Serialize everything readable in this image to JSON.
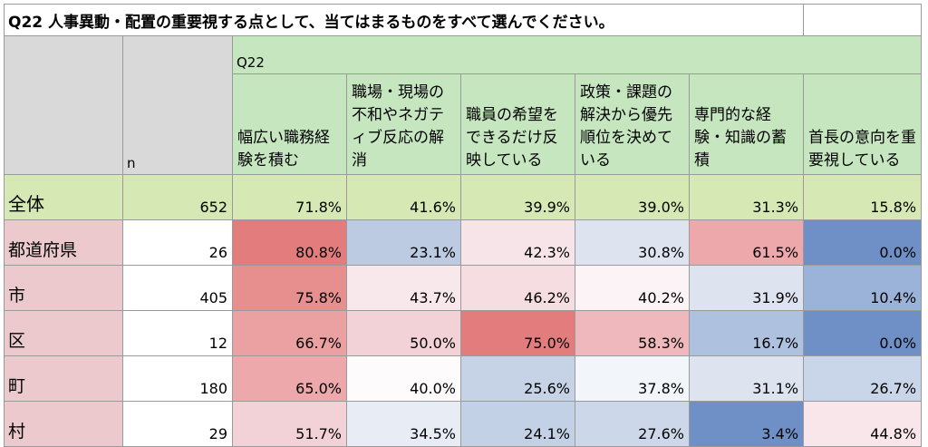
{
  "title": "Q22 人事異動・配置の重要視する点として、当てはまるものをすべて選んでください。",
  "header": {
    "n_label": "n",
    "question_code": "Q22",
    "options": [
      "幅広い職務経験を積む",
      "職場・現場の不和やネガティブ反応の解消",
      "職員の希望をできるだけ反映している",
      "政策・課題の解決から優先順位を決めている",
      "専門的な経験・知識の蓄積",
      "首長の意向を重要視している"
    ]
  },
  "total": {
    "label": "全体",
    "n": "652",
    "values": [
      "71.8%",
      "41.6%",
      "39.9%",
      "39.0%",
      "31.3%",
      "15.8%"
    ]
  },
  "rows": [
    {
      "label": "都道府県",
      "n": "26",
      "values": [
        "80.8%",
        "23.1%",
        "42.3%",
        "30.8%",
        "61.5%",
        "0.0%"
      ],
      "colors": [
        "#e37d7d",
        "#bccbe2",
        "#f7e4e8",
        "#dde4f0",
        "#eda8ab",
        "#6e90c6"
      ]
    },
    {
      "label": "市",
      "n": "405",
      "values": [
        "75.8%",
        "43.7%",
        "46.2%",
        "40.2%",
        "31.9%",
        "10.4%"
      ],
      "colors": [
        "#e78e8f",
        "#f8e8ec",
        "#f6dde2",
        "#fbf3f5",
        "#dde4f0",
        "#9bb3d8"
      ]
    },
    {
      "label": "区",
      "n": "12",
      "values": [
        "66.7%",
        "50.0%",
        "75.0%",
        "58.3%",
        "16.7%",
        "0.0%"
      ],
      "colors": [
        "#eba0a2",
        "#f3d2d7",
        "#e37d7d",
        "#efb8bc",
        "#aec1df",
        "#6e90c6"
      ]
    },
    {
      "label": "町",
      "n": "180",
      "values": [
        "65.0%",
        "40.0%",
        "25.6%",
        "37.8%",
        "31.1%",
        "26.7%"
      ],
      "colors": [
        "#eca8aa",
        "#fdfbfc",
        "#c6d3e7",
        "#f2f5fa",
        "#dde4f0",
        "#c9d5e8"
      ]
    },
    {
      "label": "村",
      "n": "29",
      "values": [
        "51.7%",
        "34.5%",
        "24.1%",
        "27.6%",
        "3.4%",
        "44.8%"
      ],
      "colors": [
        "#f3d2d7",
        "#e8edf5",
        "#c3d1e6",
        "#ccd8ea",
        "#6e90c6",
        "#f8e6ea"
      ]
    }
  ],
  "colors": {
    "header_green": "#c6e6c0",
    "header_gray": "#d9d9d9",
    "total_row": "#d6e8b4",
    "label_pink": "#ecc9cd"
  }
}
